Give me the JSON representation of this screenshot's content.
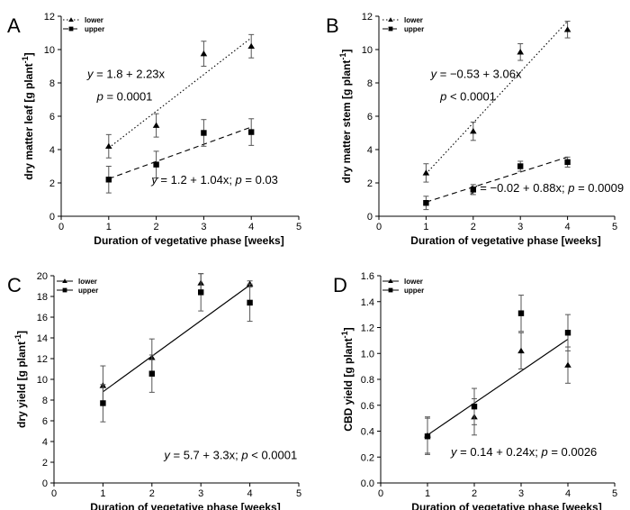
{
  "chart_data": [
    {
      "panel": "A",
      "type": "scatter",
      "xlabel": "Duration of vegetative phase [weeks]",
      "ylabel": "dry matter leaf [g plant",
      "ylabel_sup": "-1",
      "ylabel_end": "]",
      "xlim": [
        0,
        5
      ],
      "ylim": [
        0,
        12
      ],
      "xticks": [
        0,
        1,
        2,
        3,
        4,
        5
      ],
      "yticks": [
        0,
        2,
        4,
        6,
        8,
        10,
        12
      ],
      "legend": [
        "lower",
        "upper"
      ],
      "series": [
        {
          "name": "lower",
          "marker": "triangle",
          "line": "dotted",
          "x": [
            1,
            2,
            3,
            4
          ],
          "y": [
            4.2,
            5.45,
            9.75,
            10.2
          ],
          "err": [
            0.7,
            0.7,
            0.75,
            0.7
          ],
          "fit": {
            "x": [
              1,
              4
            ],
            "y": [
              4.1,
              10.7
            ]
          }
        },
        {
          "name": "upper",
          "marker": "square",
          "line": "dashed",
          "x": [
            1,
            2,
            3,
            4
          ],
          "y": [
            2.2,
            3.1,
            5.0,
            5.05
          ],
          "err": [
            0.8,
            0.8,
            0.8,
            0.8
          ],
          "fit": {
            "x": [
              1,
              4
            ],
            "y": [
              2.25,
              5.35
            ]
          }
        }
      ],
      "annotations": [
        {
          "text": "y = 1.8 + 2.23x",
          "x": 0.55,
          "y": 8.3
        },
        {
          "text": "p = 0.0001",
          "x": 0.75,
          "y": 6.95
        },
        {
          "text": "y = 1.2 + 1.04x; p = 0.03",
          "x": 1.9,
          "y": 1.95
        }
      ]
    },
    {
      "panel": "B",
      "type": "scatter",
      "xlabel": "Duration of vegetative phase [weeks]",
      "ylabel": "dry matter stem [g plant",
      "ylabel_sup": "-1",
      "ylabel_end": "]",
      "xlim": [
        0,
        5
      ],
      "ylim": [
        0,
        12
      ],
      "xticks": [
        0,
        1,
        2,
        3,
        4,
        5
      ],
      "yticks": [
        0,
        2,
        4,
        6,
        8,
        10,
        12
      ],
      "legend": [
        "lower",
        "upper"
      ],
      "series": [
        {
          "name": "lower",
          "marker": "triangle",
          "line": "dotted",
          "x": [
            1,
            2,
            3,
            4
          ],
          "y": [
            2.6,
            5.1,
            9.85,
            11.2
          ],
          "err": [
            0.55,
            0.55,
            0.5,
            0.5
          ],
          "fit": {
            "x": [
              1,
              4
            ],
            "y": [
              2.55,
              11.7
            ]
          }
        },
        {
          "name": "upper",
          "marker": "square",
          "line": "dashed",
          "x": [
            1,
            2,
            3,
            4
          ],
          "y": [
            0.8,
            1.6,
            3.0,
            3.25
          ],
          "err": [
            0.4,
            0.3,
            0.3,
            0.3
          ],
          "fit": {
            "x": [
              1,
              4
            ],
            "y": [
              0.85,
              3.55
            ]
          }
        }
      ],
      "annotations": [
        {
          "text": "y = −0.53 + 3.06x",
          "x": 1.1,
          "y": 8.3
        },
        {
          "text": "p < 0.0001",
          "x": 1.3,
          "y": 6.95
        },
        {
          "text": "y = −0.02 + 0.88x; p = 0.0009",
          "x": 1.95,
          "y": 1.45
        }
      ]
    },
    {
      "panel": "C",
      "type": "scatter",
      "xlabel": "Duration of vegetative phase [weeks]",
      "ylabel": "dry yield [g plant",
      "ylabel_sup": "-1",
      "ylabel_end": "]",
      "xlim": [
        0,
        5
      ],
      "ylim": [
        0,
        20
      ],
      "xticks": [
        0,
        1,
        2,
        3,
        4,
        5
      ],
      "yticks": [
        0,
        2,
        4,
        6,
        8,
        10,
        12,
        14,
        16,
        18,
        20
      ],
      "legend": [
        "lower",
        "upper"
      ],
      "series": [
        {
          "name": "lower",
          "marker": "triangle",
          "line": "none",
          "x": [
            1,
            2,
            3,
            4
          ],
          "y": [
            9.4,
            12.1,
            19.3,
            19.2
          ],
          "err": [
            1.9,
            1.8,
            0.9,
            0.3
          ]
        },
        {
          "name": "upper",
          "marker": "square",
          "line": "none",
          "x": [
            1,
            2,
            3,
            4
          ],
          "y": [
            7.7,
            10.55,
            18.4,
            17.4
          ],
          "err": [
            1.8,
            1.8,
            1.8,
            1.8
          ]
        }
      ],
      "fit": {
        "x": [
          1,
          4
        ],
        "y": [
          8.8,
          19.1
        ]
      },
      "annotations": [
        {
          "text": "y = 5.7 + 3.3x; p < 0.0001",
          "x": 2.25,
          "y": 2.3
        }
      ]
    },
    {
      "panel": "D",
      "type": "scatter",
      "xlabel": "Duration of vegetative phase [weeks]",
      "ylabel": "CBD yield [g plant",
      "ylabel_sup": "-1",
      "ylabel_end": "]",
      "xlim": [
        0,
        5
      ],
      "ylim": [
        0,
        1.6
      ],
      "xticks": [
        0,
        1,
        2,
        3,
        4,
        5
      ],
      "yticks": [
        "0.0",
        "0.2",
        "0.4",
        "0.6",
        "0.8",
        "1.0",
        "1.2",
        "1.4",
        "1.6"
      ],
      "legend": [
        "lower",
        "upper"
      ],
      "series": [
        {
          "name": "lower",
          "marker": "triangle",
          "line": "none",
          "x": [
            1,
            2,
            3,
            4
          ],
          "y": [
            0.37,
            0.51,
            1.02,
            0.91
          ],
          "err": [
            0.14,
            0.14,
            0.14,
            0.14
          ]
        },
        {
          "name": "upper",
          "marker": "square",
          "line": "none",
          "x": [
            1,
            2,
            3,
            4
          ],
          "y": [
            0.36,
            0.59,
            1.31,
            1.16
          ],
          "err": [
            0.14,
            0.14,
            0.14,
            0.14
          ]
        }
      ],
      "fit": {
        "x": [
          1,
          4
        ],
        "y": [
          0.37,
          1.11
        ]
      },
      "annotations": [
        {
          "text": "y = 0.14 + 0.24x; p = 0.0026",
          "x": 1.5,
          "y": 0.21
        }
      ]
    }
  ]
}
